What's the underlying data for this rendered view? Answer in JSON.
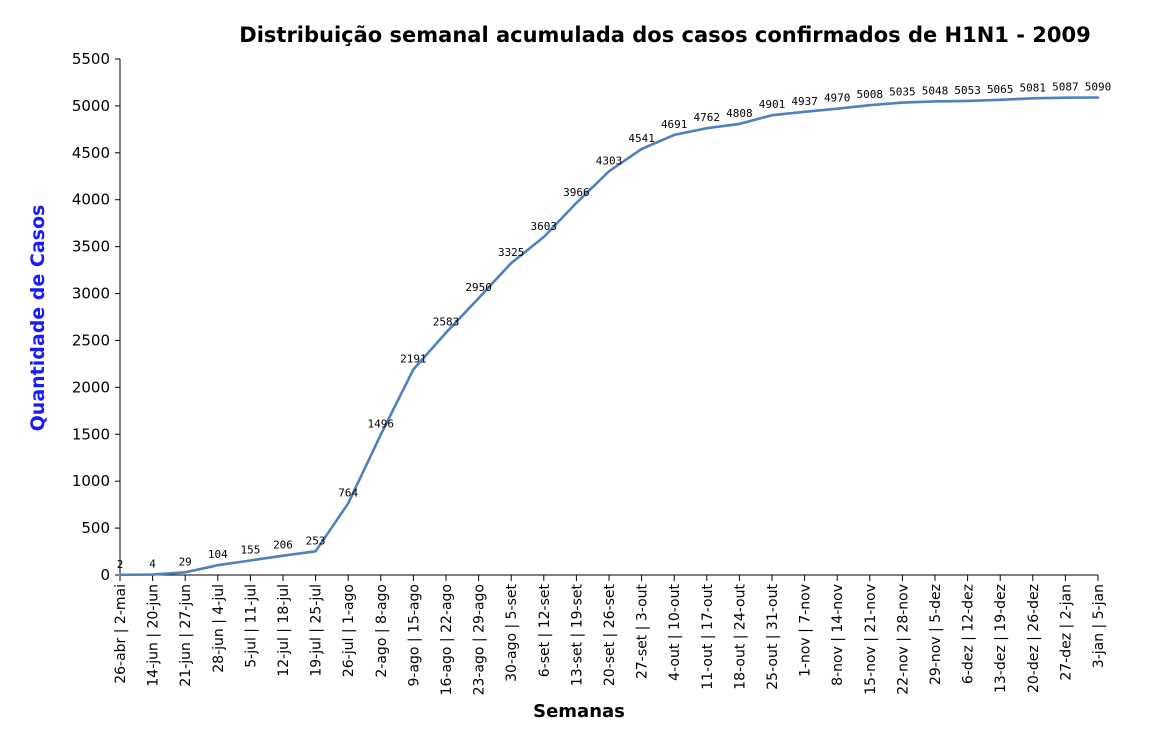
{
  "chart_data": {
    "type": "line",
    "title": "Distribuição semanal acumulada dos casos confirmados de H1N1 - 2009",
    "xlabel": "Semanas",
    "ylabel": "Quantidade de Casos",
    "ylim": [
      0,
      5500
    ],
    "yticks": [
      0,
      500,
      1000,
      1500,
      2000,
      2500,
      3000,
      3500,
      4000,
      4500,
      5000,
      5500
    ],
    "grid": false,
    "line_color": "#4f81bd",
    "categories": [
      "26-abr | 2-mai",
      "14-jun | 20-jun",
      "21-jun | 27-jun",
      "28-jun | 4-jul",
      "5-jul | 11-jul",
      "12-jul | 18-jul",
      "19-jul | 25-jul",
      "26-jul | 1-ago",
      "2-ago | 8-ago",
      "9-ago | 15-ago",
      "16-ago | 22-ago",
      "23-ago | 29-ago",
      "30-ago | 5-set",
      "6-set | 12-set",
      "13-set | 19-set",
      "20-set | 26-set",
      "27-set | 3-out",
      "4-out | 10-out",
      "11-out | 17-out",
      "18-out | 24-out",
      "25-out | 31-out",
      "1-nov | 7-nov",
      "8-nov | 14-nov",
      "15-nov | 21-nov",
      "22-nov | 28-nov",
      "29-nov | 5-dez",
      "6-dez | 12-dez",
      "13-dez | 19-dez",
      "20-dez | 26-dez",
      "27-dez | 2-jan",
      "3-jan | 5-jan"
    ],
    "values": [
      2,
      4,
      29,
      104,
      155,
      206,
      253,
      764,
      1496,
      2191,
      2583,
      2950,
      3325,
      3603,
      3966,
      4303,
      4541,
      4691,
      4762,
      4808,
      4901,
      4937,
      4970,
      5008,
      5035,
      5048,
      5053,
      5065,
      5081,
      5087,
      5090
    ]
  }
}
